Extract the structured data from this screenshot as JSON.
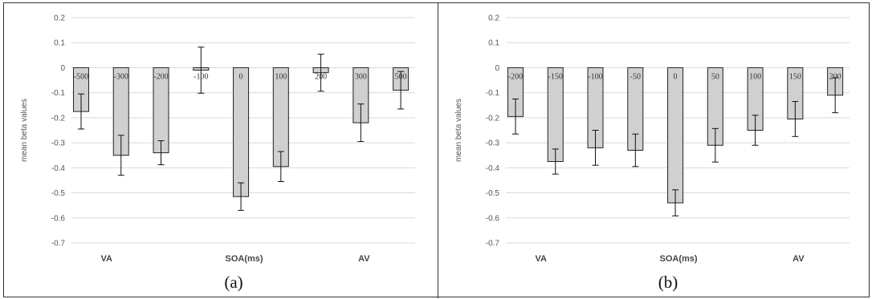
{
  "chart_data": [
    {
      "type": "bar",
      "title": "",
      "ylabel": "mean beta values",
      "xlabel": "SOA(ms)",
      "group_labels": [
        "VA",
        "SOA(ms)",
        "AV"
      ],
      "caption": "(a)",
      "ylim": [
        -0.7,
        0.2
      ],
      "yticks": [
        "0.2",
        "0.1",
        "0",
        "-0.1",
        "-0.2",
        "-0.3",
        "-0.4",
        "-0.5",
        "-0.6",
        "-0.7"
      ],
      "categories": [
        "-500",
        "-300",
        "-200",
        "-100",
        "0",
        "100",
        "200",
        "300",
        "500"
      ],
      "values": [
        -0.175,
        -0.35,
        -0.34,
        -0.01,
        -0.515,
        -0.395,
        -0.02,
        -0.22,
        -0.09
      ],
      "errors": [
        0.07,
        0.08,
        0.048,
        0.092,
        0.055,
        0.06,
        0.074,
        0.075,
        0.075
      ],
      "grid": true,
      "colors": {
        "bar": "#d0d0d0",
        "edge": "#222222",
        "grid": "#d9d9d9"
      }
    },
    {
      "type": "bar",
      "title": "",
      "ylabel": "mean beta values",
      "xlabel": "SOA(ms)",
      "group_labels": [
        "VA",
        "SOA(ms)",
        "AV"
      ],
      "caption": "(b)",
      "ylim": [
        -0.7,
        0.2
      ],
      "yticks": [
        "0.2",
        "0.1",
        "0",
        "-0.1",
        "-0.2",
        "-0.3",
        "-0.4",
        "-0.5",
        "-0.6",
        "-0.7"
      ],
      "categories": [
        "-200",
        "-150",
        "-100",
        "-50",
        "0",
        "50",
        "100",
        "150",
        "200"
      ],
      "values": [
        -0.195,
        -0.375,
        -0.32,
        -0.33,
        -0.54,
        -0.31,
        -0.25,
        -0.205,
        -0.11
      ],
      "errors": [
        0.07,
        0.05,
        0.07,
        0.065,
        0.052,
        0.067,
        0.06,
        0.07,
        0.07
      ],
      "grid": true,
      "colors": {
        "bar": "#d0d0d0",
        "edge": "#222222",
        "grid": "#d9d9d9"
      }
    }
  ]
}
